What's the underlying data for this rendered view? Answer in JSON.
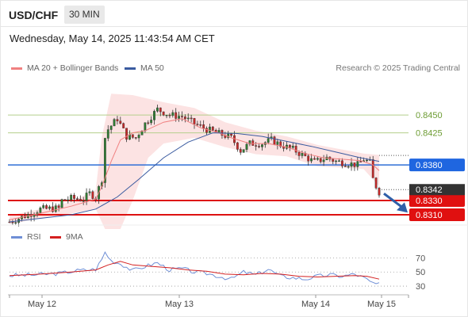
{
  "header": {
    "symbol": "USD/CHF",
    "timeframe": "30 MIN",
    "datetime": "Wednesday, May 14, 2025 11:43:54 AM CET"
  },
  "legend": {
    "bollinger_label": "MA 20 + Bollinger Bands",
    "bollinger_color": "#f08080",
    "ma50_label": "MA 50",
    "ma50_color": "#3a5ba0",
    "research": "Research © 2025 Trading Central"
  },
  "rsi_legend": {
    "rsi_label": "RSI",
    "rsi_color": "#6f8fd6",
    "ma_label": "9MA",
    "ma_color": "#d42020"
  },
  "chart_data": {
    "type": "candlestick",
    "instrument": "USD/CHF",
    "x_tick_labels": [
      "May 12",
      "May 13",
      "May 14",
      "May 15"
    ],
    "y_range": [
      0.83,
      0.8478
    ],
    "levels": [
      {
        "value": 0.845,
        "label": "0.8450",
        "kind": "resistance",
        "color": "#b5cf8c"
      },
      {
        "value": 0.8425,
        "label": "0.8425",
        "kind": "resistance",
        "color": "#b5cf8c"
      },
      {
        "value": 0.838,
        "label": "0.8380",
        "kind": "pivot",
        "color": "#2f6fd6"
      },
      {
        "value": 0.833,
        "label": "0.8330",
        "kind": "support",
        "color": "#dd1111"
      },
      {
        "value": 0.831,
        "label": "0.8310",
        "kind": "support",
        "color": "#dd1111"
      }
    ],
    "last_price": {
      "value": 0.8342,
      "label": "0.8342",
      "color": "#333333"
    },
    "arrow": "down",
    "close_path": [
      [
        0,
        0.83
      ],
      [
        6,
        0.831
      ],
      [
        10,
        0.8318
      ],
      [
        16,
        0.8319
      ],
      [
        17,
        0.833
      ],
      [
        20,
        0.8333
      ],
      [
        24,
        0.8332
      ],
      [
        26,
        0.834
      ],
      [
        28,
        0.8335
      ],
      [
        30,
        0.836
      ],
      [
        31,
        0.8418
      ],
      [
        32,
        0.843
      ],
      [
        35,
        0.8445
      ],
      [
        38,
        0.842
      ],
      [
        41,
        0.8418
      ],
      [
        44,
        0.8438
      ],
      [
        48,
        0.8458
      ],
      [
        52,
        0.845
      ],
      [
        56,
        0.8448
      ],
      [
        60,
        0.8438
      ],
      [
        64,
        0.843
      ],
      [
        68,
        0.8424
      ],
      [
        72,
        0.8418
      ],
      [
        75,
        0.84
      ],
      [
        78,
        0.841
      ],
      [
        82,
        0.841
      ],
      [
        85,
        0.8415
      ],
      [
        88,
        0.8408
      ],
      [
        92,
        0.8402
      ],
      [
        95,
        0.8394
      ],
      [
        99,
        0.8384
      ],
      [
        103,
        0.839
      ],
      [
        106,
        0.8385
      ],
      [
        110,
        0.8382
      ],
      [
        113,
        0.838
      ],
      [
        115,
        0.8388
      ],
      [
        117,
        0.8383
      ],
      [
        118,
        0.836
      ],
      [
        119,
        0.835
      ],
      [
        120,
        0.8342
      ]
    ],
    "ma20": [
      [
        0,
        0.8303
      ],
      [
        10,
        0.8312
      ],
      [
        20,
        0.8322
      ],
      [
        28,
        0.8332
      ],
      [
        30,
        0.835
      ],
      [
        33,
        0.8385
      ],
      [
        36,
        0.8415
      ],
      [
        40,
        0.8425
      ],
      [
        44,
        0.8428
      ],
      [
        50,
        0.844
      ],
      [
        56,
        0.8445
      ],
      [
        62,
        0.8432
      ],
      [
        68,
        0.8425
      ],
      [
        72,
        0.8418
      ],
      [
        78,
        0.841
      ],
      [
        84,
        0.841
      ],
      [
        90,
        0.8405
      ],
      [
        96,
        0.8396
      ],
      [
        102,
        0.839
      ],
      [
        108,
        0.8388
      ],
      [
        114,
        0.8386
      ],
      [
        118,
        0.838
      ],
      [
        120,
        0.8372
      ]
    ],
    "bollinger_upper": [
      [
        0,
        0.8309
      ],
      [
        10,
        0.8318
      ],
      [
        20,
        0.8328
      ],
      [
        28,
        0.8345
      ],
      [
        30,
        0.842
      ],
      [
        33,
        0.848
      ],
      [
        40,
        0.8478
      ],
      [
        50,
        0.8468
      ],
      [
        60,
        0.846
      ],
      [
        70,
        0.844
      ],
      [
        80,
        0.8428
      ],
      [
        90,
        0.842
      ],
      [
        100,
        0.8408
      ],
      [
        110,
        0.84
      ],
      [
        115,
        0.8396
      ],
      [
        120,
        0.8394
      ]
    ],
    "bollinger_lower": [
      [
        0,
        0.8297
      ],
      [
        10,
        0.8305
      ],
      [
        20,
        0.8312
      ],
      [
        28,
        0.8318
      ],
      [
        31,
        0.829
      ],
      [
        36,
        0.829
      ],
      [
        40,
        0.833
      ],
      [
        45,
        0.839
      ],
      [
        50,
        0.841
      ],
      [
        60,
        0.8418
      ],
      [
        70,
        0.8405
      ],
      [
        80,
        0.8395
      ],
      [
        90,
        0.8392
      ],
      [
        100,
        0.8378
      ],
      [
        110,
        0.8376
      ],
      [
        115,
        0.8374
      ],
      [
        120,
        0.835
      ]
    ],
    "ma50": [
      [
        0,
        0.83
      ],
      [
        10,
        0.8305
      ],
      [
        20,
        0.831
      ],
      [
        28,
        0.8318
      ],
      [
        35,
        0.8335
      ],
      [
        42,
        0.836
      ],
      [
        50,
        0.839
      ],
      [
        58,
        0.8412
      ],
      [
        66,
        0.8425
      ],
      [
        74,
        0.8424
      ],
      [
        82,
        0.842
      ],
      [
        90,
        0.8413
      ],
      [
        98,
        0.8406
      ],
      [
        106,
        0.8398
      ],
      [
        114,
        0.839
      ],
      [
        120,
        0.8385
      ]
    ],
    "rsi": {
      "y_ticks": [
        70,
        50,
        30
      ],
      "y_range": [
        20,
        85
      ],
      "rsi_values": [
        [
          0,
          45
        ],
        [
          8,
          46
        ],
        [
          16,
          48
        ],
        [
          22,
          52
        ],
        [
          28,
          54
        ],
        [
          30,
          68
        ],
        [
          31,
          78
        ],
        [
          33,
          66
        ],
        [
          36,
          62
        ],
        [
          40,
          52
        ],
        [
          44,
          58
        ],
        [
          48,
          63
        ],
        [
          52,
          53
        ],
        [
          56,
          55
        ],
        [
          60,
          50
        ],
        [
          64,
          48
        ],
        [
          68,
          44
        ],
        [
          72,
          40
        ],
        [
          76,
          50
        ],
        [
          80,
          46
        ],
        [
          84,
          54
        ],
        [
          88,
          44
        ],
        [
          92,
          42
        ],
        [
          96,
          40
        ],
        [
          100,
          44
        ],
        [
          104,
          46
        ],
        [
          108,
          44
        ],
        [
          112,
          47
        ],
        [
          115,
          42
        ],
        [
          117,
          36
        ],
        [
          120,
          32
        ]
      ],
      "ma_values": [
        [
          0,
          45
        ],
        [
          10,
          47
        ],
        [
          20,
          50
        ],
        [
          28,
          53
        ],
        [
          32,
          60
        ],
        [
          36,
          65
        ],
        [
          40,
          60
        ],
        [
          46,
          58
        ],
        [
          52,
          56
        ],
        [
          58,
          53
        ],
        [
          64,
          51
        ],
        [
          70,
          47
        ],
        [
          76,
          46
        ],
        [
          82,
          48
        ],
        [
          88,
          47
        ],
        [
          94,
          44
        ],
        [
          100,
          43
        ],
        [
          106,
          44
        ],
        [
          112,
          45
        ],
        [
          116,
          44
        ],
        [
          120,
          40
        ]
      ]
    }
  }
}
